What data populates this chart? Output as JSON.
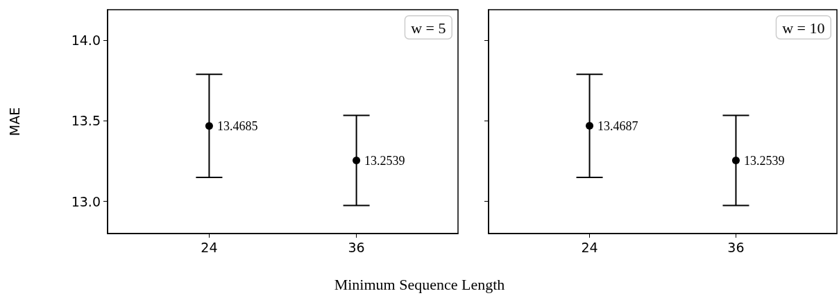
{
  "chart_data": [
    {
      "type": "scatter",
      "xlabel": "Minimum Sequence Length",
      "ylabel": "MAE",
      "categories": [
        "24",
        "36"
      ],
      "ylim": [
        12.8,
        14.19
      ],
      "yticks": [
        {
          "value": 13.0,
          "label": "13.0"
        },
        {
          "value": 13.5,
          "label": "13.5"
        },
        {
          "value": 14.0,
          "label": "14.0"
        }
      ],
      "series": [
        {
          "color": "#000000",
          "values": [
            13.4685,
            13.2539
          ],
          "errors": [
            0.32,
            0.28
          ]
        }
      ],
      "data_labels": true,
      "marker": "circle",
      "grid": false,
      "annotations": [
        "w = 5"
      ]
    },
    {
      "type": "scatter",
      "categories": [
        "24",
        "36"
      ],
      "ylim": [
        12.8,
        14.19
      ],
      "yticks": [
        {
          "value": 13.0,
          "label": null
        },
        {
          "value": 13.5,
          "label": null
        },
        {
          "value": 14.0,
          "label": null
        }
      ],
      "series": [
        {
          "color": "#000000",
          "values": [
            13.4687,
            13.2539
          ],
          "errors": [
            0.32,
            0.28
          ]
        }
      ],
      "data_labels": true,
      "marker": "circle",
      "grid": false,
      "tick_labels": "x",
      "annotations": [
        "w = 10"
      ]
    }
  ]
}
